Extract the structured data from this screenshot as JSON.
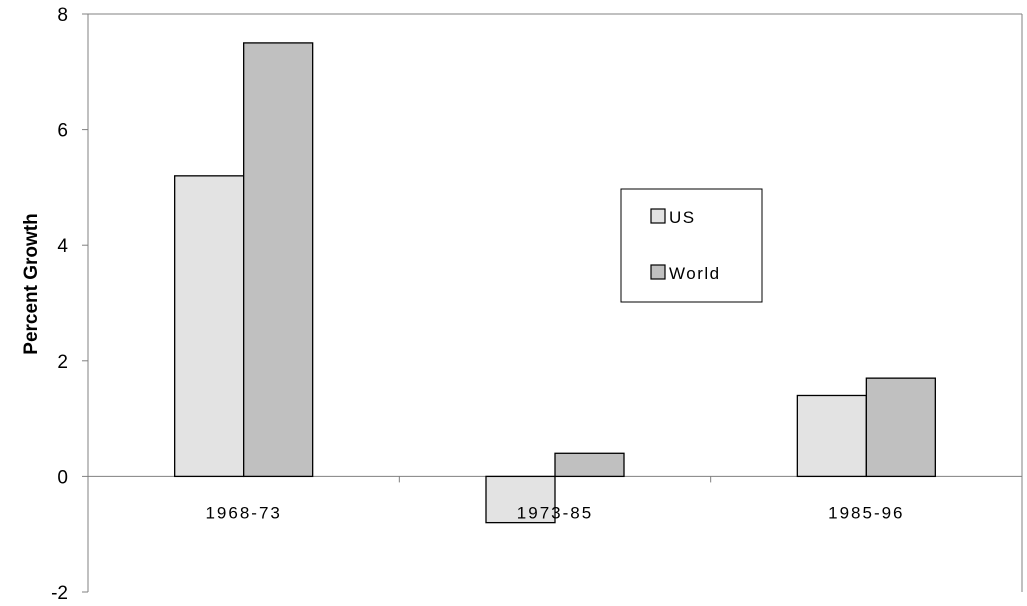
{
  "chart_data": {
    "type": "bar",
    "title": "",
    "xlabel": "",
    "ylabel": "Percent Growth",
    "categories": [
      "1968-73",
      "1973-85",
      "1985-96"
    ],
    "series": [
      {
        "name": "US",
        "values": [
          5.2,
          -0.8,
          1.4
        ],
        "color": "#e3e3e3"
      },
      {
        "name": "World",
        "values": [
          7.5,
          0.4,
          1.7
        ],
        "color": "#c0c0c0"
      }
    ],
    "ylim": [
      -2,
      8
    ],
    "yticks": [
      -2,
      0,
      2,
      4,
      6,
      8
    ],
    "grid": false,
    "legend_position": "right-middle",
    "axis_color": "#808080"
  }
}
